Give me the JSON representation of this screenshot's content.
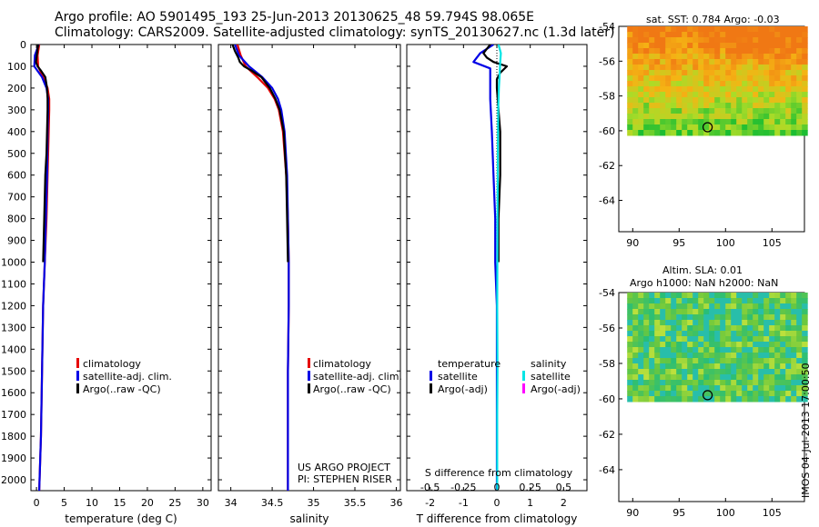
{
  "header": {
    "line1": "Argo profile: AO 5901495_193 25-Jun-2013 20130625_48 59.794S 98.065E",
    "line2": "Climatology: CARS2009. Satellite-adjusted climatology: synTS_20130627.nc (1.3d later)"
  },
  "colors": {
    "climatology": "#e60000",
    "satellite": "#0000e6",
    "argo": "#000000",
    "satellite_sal": "#00e5e5",
    "argo_sal": "#ff00ff"
  },
  "chart_data": [
    {
      "type": "line",
      "name": "temperature-panel",
      "xlabel": "temperature (deg C)",
      "ylabel": "",
      "xlim": [
        -1,
        31.5
      ],
      "ylim": [
        2050,
        0
      ],
      "xticks": [
        0,
        5,
        10,
        15,
        20,
        25,
        30
      ],
      "yticks": [
        0,
        100,
        200,
        300,
        400,
        500,
        600,
        700,
        800,
        900,
        1000,
        1100,
        1200,
        1300,
        1400,
        1500,
        1600,
        1700,
        1800,
        1900,
        2000
      ],
      "legend": [
        "climatology",
        "satellite-adj. clim.",
        "Argo(..raw -QC)"
      ],
      "series": [
        {
          "name": "climatology",
          "color_key": "climatology",
          "x": [
            0.5,
            0.2,
            0.3,
            1.2,
            2.0,
            2.3,
            2.3,
            2.2,
            2.0,
            1.8,
            1.5,
            1.2,
            1.0,
            0.8,
            0.5
          ],
          "y": [
            0,
            50,
            100,
            150,
            200,
            250,
            300,
            400,
            600,
            800,
            1000,
            1200,
            1500,
            1800,
            2050
          ]
        },
        {
          "name": "satellite-adj. clim.",
          "color_key": "satellite",
          "x": [
            0.4,
            -0.3,
            -0.4,
            1.0,
            1.8,
            2.1,
            2.1,
            2.0,
            1.9,
            1.7,
            1.5,
            1.2,
            1.0,
            0.8,
            0.5
          ],
          "y": [
            0,
            50,
            100,
            150,
            200,
            250,
            300,
            400,
            600,
            800,
            1000,
            1200,
            1500,
            1800,
            2050
          ]
        },
        {
          "name": "Argo(..raw -QC)",
          "color_key": "argo",
          "x": [
            0.3,
            0.2,
            0.1,
            0.0,
            -0.1,
            0.2,
            0.8,
            1.6,
            1.9,
            2.0,
            2.0,
            1.9,
            1.8,
            1.6,
            1.4,
            1.2
          ],
          "y": [
            0,
            20,
            40,
            60,
            80,
            100,
            120,
            150,
            200,
            250,
            300,
            400,
            500,
            600,
            800,
            1000
          ]
        }
      ]
    },
    {
      "type": "line",
      "name": "salinity-panel",
      "xlabel": "salinity",
      "ylabel": "",
      "xlim": [
        33.85,
        36.05
      ],
      "ylim": [
        2050,
        0
      ],
      "xticks": [
        34,
        34.5,
        35,
        35.5,
        36
      ],
      "ytick_labels_shown": false,
      "legend": [
        "climatology",
        "satellite-adj. clim.",
        "Argo(..raw -QC)"
      ],
      "series": [
        {
          "name": "climatology",
          "color_key": "climatology",
          "x": [
            34.08,
            34.12,
            34.18,
            34.32,
            34.45,
            34.53,
            34.58,
            34.63,
            34.67,
            34.69,
            34.7,
            34.7,
            34.69,
            34.69,
            34.69
          ],
          "y": [
            0,
            50,
            100,
            150,
            200,
            250,
            300,
            400,
            600,
            800,
            1000,
            1200,
            1500,
            1800,
            2050
          ]
        },
        {
          "name": "satellite-adj. clim.",
          "color_key": "satellite",
          "x": [
            34.05,
            34.1,
            34.22,
            34.38,
            34.5,
            34.57,
            34.61,
            34.65,
            34.68,
            34.69,
            34.7,
            34.7,
            34.69,
            34.69,
            34.69
          ],
          "y": [
            0,
            50,
            100,
            150,
            200,
            250,
            300,
            400,
            600,
            800,
            1000,
            1200,
            1500,
            1800,
            2050
          ]
        },
        {
          "name": "Argo(..raw -QC)",
          "color_key": "argo",
          "x": [
            34.02,
            34.05,
            34.09,
            34.11,
            34.16,
            34.25,
            34.37,
            34.47,
            34.54,
            34.59,
            34.64,
            34.67,
            34.68,
            34.69
          ],
          "y": [
            0,
            30,
            60,
            80,
            100,
            120,
            150,
            200,
            250,
            300,
            400,
            600,
            800,
            1000
          ]
        }
      ],
      "annotations": [
        "US ARGO PROJECT",
        "PI: STEPHEN RISER"
      ]
    },
    {
      "type": "line",
      "name": "difference-panel",
      "xlabel": "T difference from climatology",
      "top_axis_label": "S difference from climatology",
      "xlim": [
        -2.7,
        2.7
      ],
      "ylim": [
        2050,
        0
      ],
      "xticks": [
        -2,
        -1,
        0,
        1,
        2
      ],
      "xtick_labels": [
        "-2",
        "-1",
        "0",
        "1",
        "2"
      ],
      "sticks": [
        -0.5,
        -0.25,
        0,
        0.25,
        0.5
      ],
      "stick_labels": [
        "-0.5",
        "-0.25",
        "0",
        "0.25",
        "0.5"
      ],
      "ytick_labels_shown": false,
      "legend": {
        "temperature_title": "temperature",
        "salinity_title": "salinity",
        "temperature": [
          "satellite",
          "Argo(-adj)"
        ],
        "salinity": [
          "satellite",
          "Argo(-adj)"
        ]
      },
      "series": [
        {
          "name": "T satellite",
          "color_key": "satellite",
          "x": [
            -0.1,
            -0.5,
            -0.7,
            -0.2,
            -0.2,
            -0.2,
            -0.15,
            -0.1,
            -0.05,
            -0.05,
            0.0,
            0.0,
            0.0,
            0.0
          ],
          "y": [
            0,
            40,
            80,
            110,
            150,
            250,
            400,
            600,
            800,
            1000,
            1200,
            1500,
            1800,
            2050
          ]
        },
        {
          "name": "T Argo(-adj)",
          "color_key": "argo",
          "x": [
            -0.2,
            -0.4,
            -0.3,
            -0.1,
            0.3,
            0.1,
            0.0,
            0.0,
            0.05,
            0.1,
            0.1,
            0.05,
            0.05
          ],
          "y": [
            0,
            40,
            60,
            80,
            100,
            130,
            160,
            200,
            300,
            400,
            600,
            800,
            1000
          ]
        },
        {
          "name": "S satellite",
          "color_key": "satellite_sal",
          "x": [
            0.05,
            0.12,
            0.1,
            0.08,
            0.06,
            0.04,
            0.03,
            0.02,
            0.01,
            0.02,
            0.01,
            0.01,
            0.01
          ],
          "y": [
            0,
            40,
            80,
            150,
            200,
            300,
            500,
            800,
            1200,
            1500,
            1700,
            1900,
            2050
          ]
        }
      ]
    },
    {
      "type": "heatmap",
      "name": "sst-map",
      "title": "sat. SST: 0.784  Argo: -0.03",
      "xlim": [
        88.5,
        108.5
      ],
      "ylim": [
        -65.8,
        -54
      ],
      "xticks": [
        90,
        95,
        100,
        105
      ],
      "yticks": [
        -54,
        -56,
        -58,
        -60,
        -62,
        -64
      ],
      "xtick_labels": [
        "90",
        "95",
        "100",
        "105"
      ],
      "ytick_labels": [
        "-54",
        "-56",
        "-58",
        "-60",
        "-62",
        "-64"
      ],
      "data_extent_lat": [
        -54,
        -60
      ],
      "argo_marker": [
        98.065,
        -59.794
      ]
    },
    {
      "type": "heatmap",
      "name": "sla-map",
      "title_line1": "Altim. SLA: 0.01",
      "title_line2": "Argo h1000: NaN h2000: NaN",
      "xlim": [
        88.5,
        108.5
      ],
      "ylim": [
        -65.8,
        -54
      ],
      "xticks": [
        90,
        95,
        100,
        105
      ],
      "yticks": [
        -54,
        -56,
        -58,
        -60,
        -62,
        -64
      ],
      "xtick_labels": [
        "90",
        "95",
        "100",
        "105"
      ],
      "ytick_labels": [
        "-54",
        "-56",
        "-58",
        "-60",
        "-62",
        "-64"
      ],
      "data_extent_lat": [
        -54,
        -60
      ],
      "argo_marker": [
        98.065,
        -59.794
      ]
    }
  ],
  "stamp": "IMOS 04-Jul-2013 17:00:50"
}
